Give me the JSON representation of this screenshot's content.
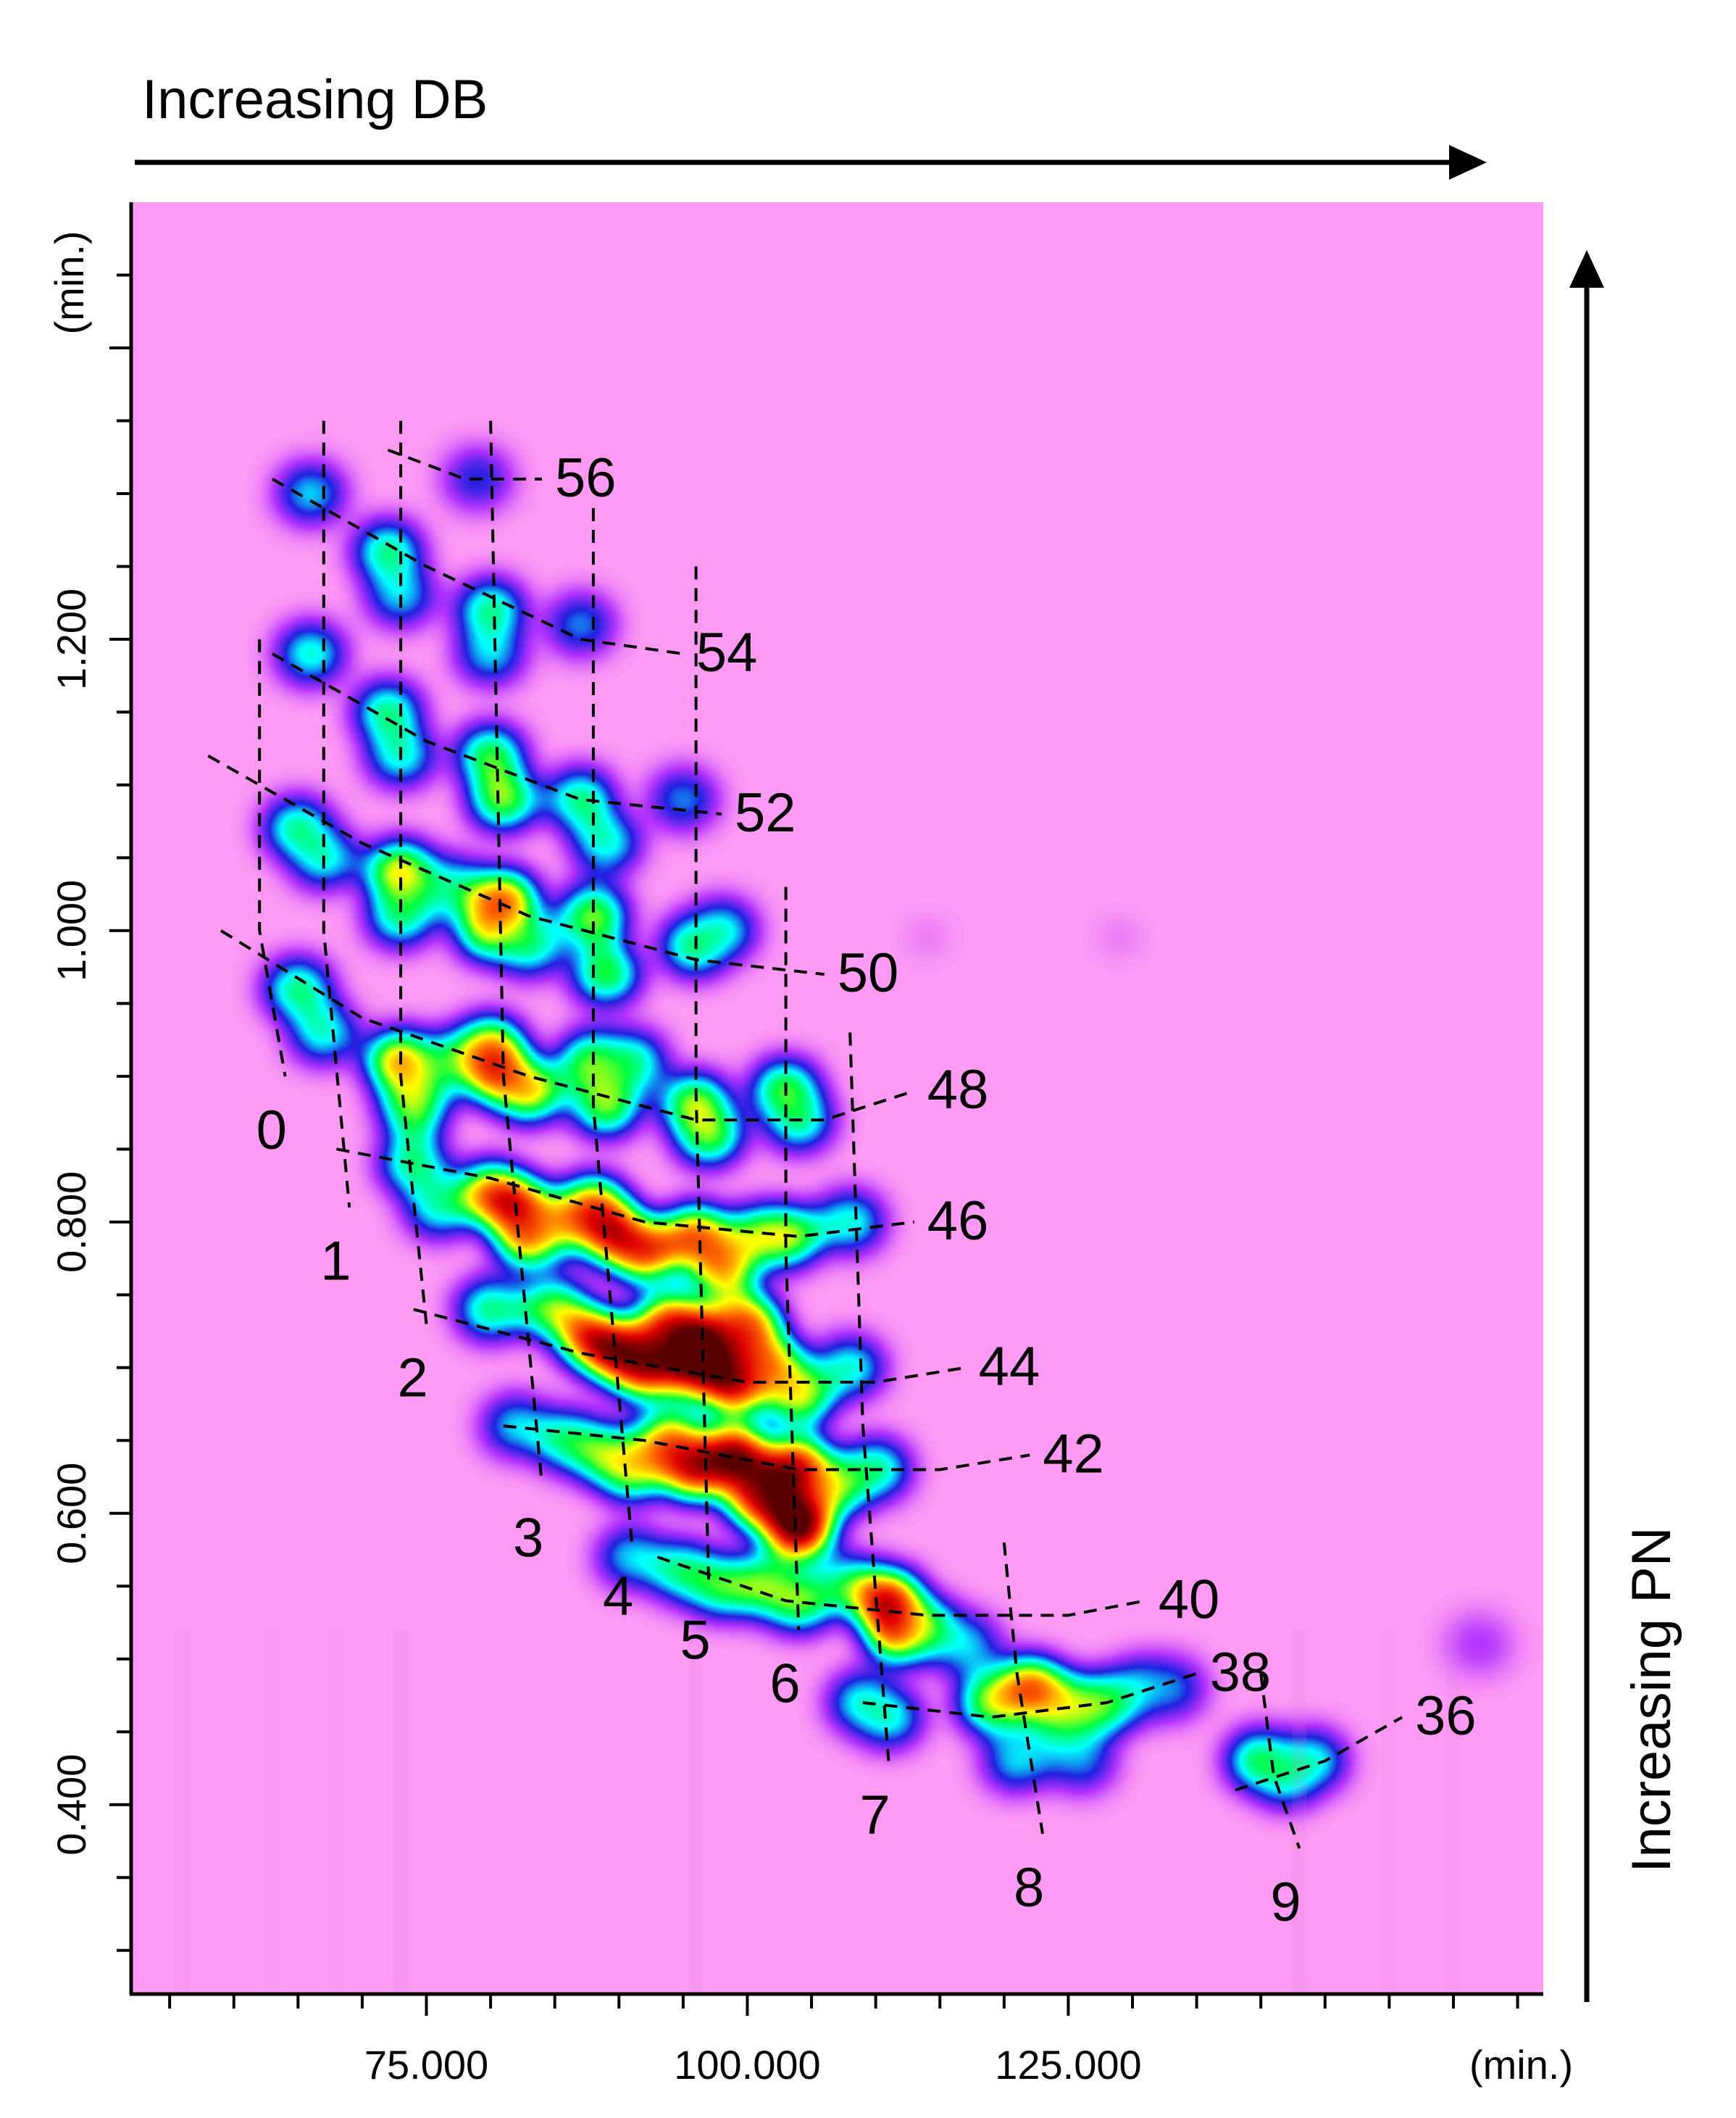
{
  "chart_data": {
    "type": "heatmap",
    "title": "",
    "x_arrow_label": "Increasing DB",
    "y_arrow_label": "Increasing PN",
    "xlabel": "(min.)",
    "ylabel": "(min.)",
    "x_ticks": [
      "75.000",
      "100.000",
      "125.000"
    ],
    "x_tick_values": [
      75,
      100,
      125
    ],
    "y_ticks": [
      "1.200",
      "1.000",
      "0.800",
      "0.600",
      "0.400"
    ],
    "y_tick_values": [
      1.2,
      1.0,
      0.8,
      0.6,
      0.4
    ],
    "xlim": [
      52,
      162
    ],
    "ylim": [
      0.27,
      1.5
    ],
    "colorscale": [
      "#ff9cf6",
      "#b030ff",
      "#2020e0",
      "#00ffff",
      "#00ff40",
      "#ffff00",
      "#ff6a00",
      "#e00000",
      "#5a0000"
    ],
    "pn_labels": [
      "56",
      "54",
      "52",
      "50",
      "48",
      "46",
      "44",
      "42",
      "40",
      "38",
      "36"
    ],
    "db_labels": [
      "0",
      "1",
      "2",
      "3",
      "4",
      "5",
      "6",
      "7",
      "8",
      "9"
    ],
    "pn_lines": [
      {
        "label": "56",
        "points": [
          [
            72,
            1.33
          ],
          [
            78,
            1.31
          ],
          [
            84,
            1.31
          ]
        ]
      },
      {
        "label": "54",
        "points": [
          [
            63,
            1.31
          ],
          [
            75,
            1.25
          ],
          [
            87,
            1.2
          ],
          [
            95,
            1.19
          ]
        ]
      },
      {
        "label": "52",
        "points": [
          [
            63,
            1.19
          ],
          [
            75,
            1.13
          ],
          [
            87,
            1.09
          ],
          [
            98,
            1.08
          ]
        ]
      },
      {
        "label": "50",
        "points": [
          [
            58,
            1.12
          ],
          [
            70,
            1.06
          ],
          [
            83,
            1.01
          ],
          [
            96,
            0.98
          ],
          [
            106,
            0.97
          ]
        ]
      },
      {
        "label": "48",
        "points": [
          [
            59,
            1.0
          ],
          [
            70,
            0.94
          ],
          [
            83,
            0.9
          ],
          [
            96,
            0.87
          ],
          [
            106,
            0.87
          ],
          [
            113,
            0.89
          ]
        ]
      },
      {
        "label": "46",
        "points": [
          [
            68,
            0.85
          ],
          [
            80,
            0.83
          ],
          [
            92,
            0.8
          ],
          [
            104,
            0.79
          ],
          [
            113,
            0.8
          ]
        ]
      },
      {
        "label": "44",
        "points": [
          [
            74,
            0.74
          ],
          [
            87,
            0.71
          ],
          [
            100,
            0.69
          ],
          [
            110,
            0.69
          ],
          [
            117,
            0.7
          ]
        ]
      },
      {
        "label": "42",
        "points": [
          [
            81,
            0.66
          ],
          [
            92,
            0.65
          ],
          [
            104,
            0.63
          ],
          [
            115,
            0.63
          ],
          [
            122,
            0.64
          ]
        ]
      },
      {
        "label": "40",
        "points": [
          [
            93,
            0.57
          ],
          [
            103,
            0.54
          ],
          [
            114,
            0.53
          ],
          [
            125,
            0.53
          ],
          [
            131,
            0.54
          ]
        ]
      },
      {
        "label": "38",
        "points": [
          [
            109,
            0.47
          ],
          [
            119,
            0.46
          ],
          [
            128,
            0.47
          ],
          [
            135,
            0.49
          ]
        ]
      },
      {
        "label": "36",
        "points": [
          [
            138,
            0.41
          ],
          [
            145,
            0.43
          ],
          [
            151,
            0.46
          ]
        ]
      }
    ],
    "db_lines": [
      {
        "label": "0",
        "points": [
          [
            62,
            1.2
          ],
          [
            62,
            1.0
          ],
          [
            64,
            0.9
          ]
        ]
      },
      {
        "label": "1",
        "points": [
          [
            67,
            1.35
          ],
          [
            67,
            1.0
          ],
          [
            69,
            0.81
          ]
        ]
      },
      {
        "label": "2",
        "points": [
          [
            73,
            1.35
          ],
          [
            73,
            0.9
          ],
          [
            75,
            0.73
          ]
        ]
      },
      {
        "label": "3",
        "points": [
          [
            80,
            1.35
          ],
          [
            81,
            0.9
          ],
          [
            84,
            0.62
          ]
        ]
      },
      {
        "label": "4",
        "points": [
          [
            88,
            1.29
          ],
          [
            88,
            0.88
          ],
          [
            91,
            0.58
          ]
        ]
      },
      {
        "label": "5",
        "points": [
          [
            96,
            1.25
          ],
          [
            96,
            0.89
          ],
          [
            97,
            0.55
          ]
        ]
      },
      {
        "label": "6",
        "points": [
          [
            103,
            1.03
          ],
          [
            103,
            0.78
          ],
          [
            104,
            0.52
          ]
        ]
      },
      {
        "label": "7",
        "points": [
          [
            108,
            0.93
          ],
          [
            109,
            0.66
          ],
          [
            111,
            0.43
          ]
        ]
      },
      {
        "label": "8",
        "points": [
          [
            120,
            0.58
          ],
          [
            121,
            0.49
          ],
          [
            123,
            0.38
          ]
        ]
      },
      {
        "label": "9",
        "points": [
          [
            140,
            0.49
          ],
          [
            141,
            0.42
          ],
          [
            143,
            0.37
          ]
        ]
      }
    ],
    "peaks": [
      {
        "x": 66,
        "y": 1.3,
        "v": 0.35
      },
      {
        "x": 72,
        "y": 1.26,
        "v": 0.45
      },
      {
        "x": 73,
        "y": 1.23,
        "v": 0.35
      },
      {
        "x": 79,
        "y": 1.31,
        "v": 0.25
      },
      {
        "x": 80,
        "y": 1.22,
        "v": 0.45
      },
      {
        "x": 80,
        "y": 1.19,
        "v": 0.35
      },
      {
        "x": 87,
        "y": 1.21,
        "v": 0.3
      },
      {
        "x": 66,
        "y": 1.19,
        "v": 0.4
      },
      {
        "x": 72,
        "y": 1.15,
        "v": 0.45
      },
      {
        "x": 73,
        "y": 1.12,
        "v": 0.4
      },
      {
        "x": 80,
        "y": 1.12,
        "v": 0.5
      },
      {
        "x": 81,
        "y": 1.09,
        "v": 0.55
      },
      {
        "x": 87,
        "y": 1.09,
        "v": 0.45
      },
      {
        "x": 89,
        "y": 1.06,
        "v": 0.4
      },
      {
        "x": 95,
        "y": 1.09,
        "v": 0.3
      },
      {
        "x": 65,
        "y": 1.07,
        "v": 0.45
      },
      {
        "x": 67,
        "y": 1.05,
        "v": 0.4
      },
      {
        "x": 73,
        "y": 1.04,
        "v": 0.65
      },
      {
        "x": 73,
        "y": 1.01,
        "v": 0.45
      },
      {
        "x": 77,
        "y": 1.03,
        "v": 0.4
      },
      {
        "x": 80,
        "y": 1.0,
        "v": 0.6
      },
      {
        "x": 81,
        "y": 1.02,
        "v": 0.75
      },
      {
        "x": 83,
        "y": 0.99,
        "v": 0.45
      },
      {
        "x": 88,
        "y": 1.01,
        "v": 0.55
      },
      {
        "x": 89,
        "y": 0.97,
        "v": 0.5
      },
      {
        "x": 96,
        "y": 0.99,
        "v": 0.5
      },
      {
        "x": 98,
        "y": 1.0,
        "v": 0.4
      },
      {
        "x": 65,
        "y": 0.96,
        "v": 0.45
      },
      {
        "x": 67,
        "y": 0.93,
        "v": 0.4
      },
      {
        "x": 73,
        "y": 0.91,
        "v": 0.7
      },
      {
        "x": 74,
        "y": 0.88,
        "v": 0.55
      },
      {
        "x": 77,
        "y": 0.91,
        "v": 0.45
      },
      {
        "x": 80,
        "y": 0.92,
        "v": 0.65
      },
      {
        "x": 81,
        "y": 0.9,
        "v": 0.85
      },
      {
        "x": 83,
        "y": 0.89,
        "v": 0.65
      },
      {
        "x": 88,
        "y": 0.91,
        "v": 0.55
      },
      {
        "x": 89,
        "y": 0.88,
        "v": 0.55
      },
      {
        "x": 91,
        "y": 0.91,
        "v": 0.45
      },
      {
        "x": 96,
        "y": 0.88,
        "v": 0.6
      },
      {
        "x": 97,
        "y": 0.86,
        "v": 0.55
      },
      {
        "x": 103,
        "y": 0.89,
        "v": 0.55
      },
      {
        "x": 104,
        "y": 0.87,
        "v": 0.45
      },
      {
        "x": 74,
        "y": 0.84,
        "v": 0.45
      },
      {
        "x": 76,
        "y": 0.81,
        "v": 0.4
      },
      {
        "x": 80,
        "y": 0.82,
        "v": 0.65
      },
      {
        "x": 82,
        "y": 0.81,
        "v": 0.9
      },
      {
        "x": 83,
        "y": 0.79,
        "v": 0.75
      },
      {
        "x": 86,
        "y": 0.8,
        "v": 0.6
      },
      {
        "x": 88,
        "y": 0.81,
        "v": 0.75
      },
      {
        "x": 90,
        "y": 0.79,
        "v": 0.9
      },
      {
        "x": 92,
        "y": 0.78,
        "v": 0.8
      },
      {
        "x": 96,
        "y": 0.79,
        "v": 0.75
      },
      {
        "x": 98,
        "y": 0.77,
        "v": 0.7
      },
      {
        "x": 101,
        "y": 0.79,
        "v": 0.55
      },
      {
        "x": 103,
        "y": 0.79,
        "v": 0.6
      },
      {
        "x": 108,
        "y": 0.8,
        "v": 0.4
      },
      {
        "x": 80,
        "y": 0.74,
        "v": 0.45
      },
      {
        "x": 85,
        "y": 0.74,
        "v": 0.55
      },
      {
        "x": 88,
        "y": 0.72,
        "v": 0.8
      },
      {
        "x": 90,
        "y": 0.71,
        "v": 0.95
      },
      {
        "x": 92,
        "y": 0.7,
        "v": 0.9
      },
      {
        "x": 94,
        "y": 0.73,
        "v": 0.8
      },
      {
        "x": 96,
        "y": 0.7,
        "v": 0.95
      },
      {
        "x": 97,
        "y": 0.72,
        "v": 1.0
      },
      {
        "x": 99,
        "y": 0.69,
        "v": 0.95
      },
      {
        "x": 100,
        "y": 0.73,
        "v": 0.75
      },
      {
        "x": 102,
        "y": 0.7,
        "v": 0.7
      },
      {
        "x": 104,
        "y": 0.68,
        "v": 0.6
      },
      {
        "x": 108,
        "y": 0.7,
        "v": 0.4
      },
      {
        "x": 82,
        "y": 0.66,
        "v": 0.35
      },
      {
        "x": 86,
        "y": 0.65,
        "v": 0.45
      },
      {
        "x": 89,
        "y": 0.64,
        "v": 0.55
      },
      {
        "x": 91,
        "y": 0.63,
        "v": 0.6
      },
      {
        "x": 94,
        "y": 0.65,
        "v": 0.7
      },
      {
        "x": 96,
        "y": 0.63,
        "v": 0.85
      },
      {
        "x": 99,
        "y": 0.64,
        "v": 0.95
      },
      {
        "x": 101,
        "y": 0.61,
        "v": 0.85
      },
      {
        "x": 104,
        "y": 0.63,
        "v": 0.95
      },
      {
        "x": 104,
        "y": 0.59,
        "v": 1.0
      },
      {
        "x": 107,
        "y": 0.62,
        "v": 0.6
      },
      {
        "x": 110,
        "y": 0.63,
        "v": 0.45
      },
      {
        "x": 91,
        "y": 0.57,
        "v": 0.35
      },
      {
        "x": 95,
        "y": 0.56,
        "v": 0.45
      },
      {
        "x": 98,
        "y": 0.55,
        "v": 0.5
      },
      {
        "x": 101,
        "y": 0.55,
        "v": 0.55
      },
      {
        "x": 104,
        "y": 0.54,
        "v": 0.55
      },
      {
        "x": 108,
        "y": 0.55,
        "v": 0.45
      },
      {
        "x": 111,
        "y": 0.54,
        "v": 0.85
      },
      {
        "x": 112,
        "y": 0.52,
        "v": 0.95
      },
      {
        "x": 114,
        "y": 0.52,
        "v": 0.6
      },
      {
        "x": 117,
        "y": 0.51,
        "v": 0.35
      },
      {
        "x": 109,
        "y": 0.47,
        "v": 0.4
      },
      {
        "x": 111,
        "y": 0.46,
        "v": 0.4
      },
      {
        "x": 119,
        "y": 0.47,
        "v": 0.55
      },
      {
        "x": 122,
        "y": 0.48,
        "v": 0.75
      },
      {
        "x": 124,
        "y": 0.47,
        "v": 0.8
      },
      {
        "x": 125,
        "y": 0.46,
        "v": 0.55
      },
      {
        "x": 128,
        "y": 0.47,
        "v": 0.55
      },
      {
        "x": 131,
        "y": 0.48,
        "v": 0.4
      },
      {
        "x": 133,
        "y": 0.48,
        "v": 0.3
      },
      {
        "x": 121,
        "y": 0.43,
        "v": 0.35
      },
      {
        "x": 126,
        "y": 0.43,
        "v": 0.3
      },
      {
        "x": 140,
        "y": 0.43,
        "v": 0.5
      },
      {
        "x": 142,
        "y": 0.42,
        "v": 0.45
      },
      {
        "x": 144,
        "y": 0.43,
        "v": 0.4
      },
      {
        "x": 157,
        "y": 0.51,
        "v": 0.12
      },
      {
        "x": 114,
        "y": 0.995,
        "v": 0.35
      },
      {
        "x": 129,
        "y": 0.995,
        "v": 0.35
      }
    ]
  }
}
